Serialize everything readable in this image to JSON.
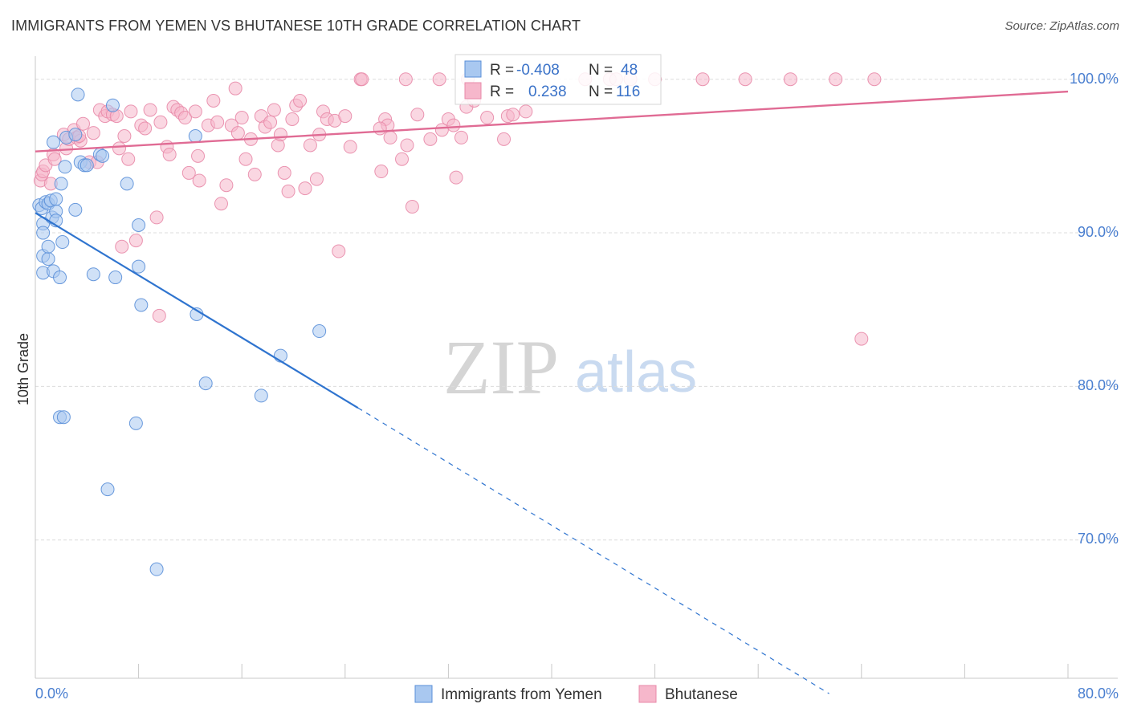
{
  "header": {
    "title": "IMMIGRANTS FROM YEMEN VS BHUTANESE 10TH GRADE CORRELATION CHART",
    "source": "Source: ZipAtlas.com"
  },
  "watermark": {
    "zip": "ZIP",
    "atlas": "atlas"
  },
  "colors": {
    "blue_fill": "#a9c8f0",
    "blue_stroke": "#5a8fd8",
    "blue_line": "#2f74cf",
    "pink_fill": "#f6b7cb",
    "pink_stroke": "#e88aa8",
    "pink_line": "#e06b94",
    "tick_text": "#4a7fd0",
    "grid": "#dcdcdc"
  },
  "stats": {
    "series1": {
      "r_label": "R =",
      "r_value": "-0.408",
      "n_label": "N =",
      "n_value": "48"
    },
    "series2": {
      "r_label": "R =",
      "r_value": "0.238",
      "n_label": "N =",
      "n_value": "116"
    }
  },
  "chart_data": {
    "type": "scatter",
    "title": "IMMIGRANTS FROM YEMEN VS BHUTANESE 10TH GRADE CORRELATION CHART",
    "xlabel": "",
    "ylabel": "10th Grade",
    "xlim": [
      0,
      80
    ],
    "ylim": [
      61,
      101.5
    ],
    "x_tick_labels": [
      "0.0%",
      "80.0%"
    ],
    "y_ticks": [
      70,
      80,
      90,
      100
    ],
    "y_tick_labels": [
      "70.0%",
      "80.0%",
      "90.0%",
      "100.0%"
    ],
    "grid": true,
    "legend_position": "bottom",
    "series": [
      {
        "name": "Immigrants from Yemen",
        "color": "#a9c8f0",
        "r": -0.408,
        "n": 48,
        "trend": {
          "x": [
            0,
            25,
            61.5
          ],
          "y": [
            91.3,
            78.6,
            60.0
          ],
          "solid_until_x": 25
        },
        "points": [
          [
            0.3,
            91.8
          ],
          [
            0.5,
            91.6
          ],
          [
            0.6,
            90.6
          ],
          [
            0.6,
            90.0
          ],
          [
            0.6,
            88.5
          ],
          [
            0.6,
            87.4
          ],
          [
            0.8,
            92.0
          ],
          [
            1.0,
            91.9
          ],
          [
            1.0,
            88.3
          ],
          [
            1.0,
            89.1
          ],
          [
            1.2,
            92.1
          ],
          [
            1.3,
            91.0
          ],
          [
            1.4,
            95.9
          ],
          [
            1.4,
            87.5
          ],
          [
            1.6,
            91.4
          ],
          [
            1.6,
            92.2
          ],
          [
            1.6,
            90.8
          ],
          [
            1.9,
            87.1
          ],
          [
            2.0,
            93.2
          ],
          [
            2.1,
            89.4
          ],
          [
            2.3,
            94.3
          ],
          [
            2.4,
            96.2
          ],
          [
            3.1,
            91.5
          ],
          [
            3.1,
            96.4
          ],
          [
            3.3,
            99.0
          ],
          [
            3.5,
            94.6
          ],
          [
            3.8,
            94.4
          ],
          [
            4.0,
            94.4
          ],
          [
            4.5,
            87.3
          ],
          [
            5.0,
            95.1
          ],
          [
            5.2,
            95.0
          ],
          [
            6.0,
            98.3
          ],
          [
            6.2,
            87.1
          ],
          [
            7.1,
            93.2
          ],
          [
            8.0,
            90.5
          ],
          [
            8.0,
            87.8
          ],
          [
            8.2,
            85.3
          ],
          [
            12.4,
            96.3
          ],
          [
            12.5,
            84.7
          ],
          [
            13.2,
            80.2
          ],
          [
            17.5,
            79.4
          ],
          [
            19.0,
            82.0
          ],
          [
            22.0,
            83.6
          ],
          [
            1.9,
            78.0
          ],
          [
            2.2,
            78.0
          ],
          [
            7.8,
            77.6
          ],
          [
            5.6,
            73.3
          ],
          [
            9.4,
            68.1
          ]
        ]
      },
      {
        "name": "Bhutanese",
        "color": "#f6b7cb",
        "r": 0.238,
        "n": 116,
        "trend": {
          "x": [
            0,
            80
          ],
          "y": [
            95.3,
            99.2
          ]
        },
        "points": [
          [
            0.4,
            93.4
          ],
          [
            0.5,
            93.8
          ],
          [
            0.6,
            94.0
          ],
          [
            0.8,
            94.4
          ],
          [
            1.2,
            93.2
          ],
          [
            1.4,
            95.1
          ],
          [
            1.5,
            94.8
          ],
          [
            2.2,
            96.4
          ],
          [
            2.4,
            95.5
          ],
          [
            2.6,
            96.1
          ],
          [
            3.0,
            96.7
          ],
          [
            3.2,
            96.2
          ],
          [
            3.5,
            96.0
          ],
          [
            3.7,
            97.1
          ],
          [
            4.2,
            94.6
          ],
          [
            4.5,
            96.5
          ],
          [
            4.8,
            94.6
          ],
          [
            5.0,
            98.0
          ],
          [
            5.4,
            97.6
          ],
          [
            5.6,
            97.9
          ],
          [
            6.0,
            97.7
          ],
          [
            6.3,
            97.6
          ],
          [
            6.5,
            95.5
          ],
          [
            6.9,
            96.3
          ],
          [
            7.2,
            94.8
          ],
          [
            7.4,
            97.9
          ],
          [
            8.2,
            97.0
          ],
          [
            8.5,
            96.8
          ],
          [
            8.9,
            98.0
          ],
          [
            9.4,
            91.0
          ],
          [
            9.7,
            97.2
          ],
          [
            10.2,
            95.6
          ],
          [
            10.4,
            95.1
          ],
          [
            10.7,
            98.2
          ],
          [
            11.0,
            98.0
          ],
          [
            11.3,
            97.8
          ],
          [
            11.6,
            97.5
          ],
          [
            11.9,
            93.9
          ],
          [
            12.4,
            97.9
          ],
          [
            12.6,
            95.0
          ],
          [
            12.7,
            93.4
          ],
          [
            13.4,
            97.0
          ],
          [
            13.8,
            98.6
          ],
          [
            14.1,
            97.2
          ],
          [
            14.4,
            91.9
          ],
          [
            14.8,
            93.1
          ],
          [
            15.2,
            97.0
          ],
          [
            15.5,
            99.4
          ],
          [
            15.7,
            96.5
          ],
          [
            16.0,
            97.5
          ],
          [
            16.3,
            94.8
          ],
          [
            16.7,
            96.1
          ],
          [
            17.0,
            93.8
          ],
          [
            17.5,
            97.6
          ],
          [
            17.8,
            96.9
          ],
          [
            18.2,
            97.2
          ],
          [
            18.5,
            98.0
          ],
          [
            18.8,
            95.7
          ],
          [
            19.0,
            96.4
          ],
          [
            19.3,
            93.9
          ],
          [
            19.6,
            92.7
          ],
          [
            19.9,
            97.4
          ],
          [
            20.2,
            98.3
          ],
          [
            20.5,
            98.6
          ],
          [
            20.9,
            92.9
          ],
          [
            21.3,
            95.7
          ],
          [
            21.8,
            93.5
          ],
          [
            22.0,
            96.4
          ],
          [
            22.3,
            97.9
          ],
          [
            22.6,
            97.4
          ],
          [
            23.2,
            97.3
          ],
          [
            23.5,
            88.8
          ],
          [
            24.0,
            97.6
          ],
          [
            24.4,
            95.6
          ],
          [
            25.2,
            100.0
          ],
          [
            25.3,
            100.0
          ],
          [
            26.8,
            94.0
          ],
          [
            27.1,
            97.4
          ],
          [
            27.3,
            97.0
          ],
          [
            27.5,
            96.2
          ],
          [
            28.4,
            94.8
          ],
          [
            28.8,
            95.7
          ],
          [
            29.2,
            91.7
          ],
          [
            29.6,
            97.7
          ],
          [
            30.6,
            96.1
          ],
          [
            31.5,
            96.7
          ],
          [
            32.0,
            97.4
          ],
          [
            32.4,
            97.0
          ],
          [
            32.6,
            93.6
          ],
          [
            33.0,
            96.2
          ],
          [
            33.4,
            98.2
          ],
          [
            34.0,
            98.6
          ],
          [
            35.0,
            97.5
          ],
          [
            36.3,
            96.1
          ],
          [
            36.6,
            97.6
          ],
          [
            37.0,
            97.7
          ],
          [
            38.0,
            97.9
          ],
          [
            7.8,
            89.5
          ],
          [
            6.7,
            89.1
          ],
          [
            9.6,
            84.6
          ],
          [
            28.7,
            100.0
          ],
          [
            31.3,
            100.0
          ],
          [
            33.5,
            100.0
          ],
          [
            42.6,
            100.0
          ],
          [
            44.5,
            100.0
          ],
          [
            45.0,
            100.0
          ],
          [
            46.1,
            100.0
          ],
          [
            48.0,
            100.0
          ],
          [
            51.7,
            100.0
          ],
          [
            55.0,
            100.0
          ],
          [
            58.5,
            100.0
          ],
          [
            62.0,
            100.0
          ],
          [
            65.0,
            100.0
          ],
          [
            64.0,
            83.1
          ],
          [
            3.4,
            96.3
          ],
          [
            26.7,
            96.8
          ]
        ]
      }
    ]
  },
  "legend": {
    "items": [
      {
        "label": "Immigrants from Yemen"
      },
      {
        "label": "Bhutanese"
      }
    ]
  }
}
